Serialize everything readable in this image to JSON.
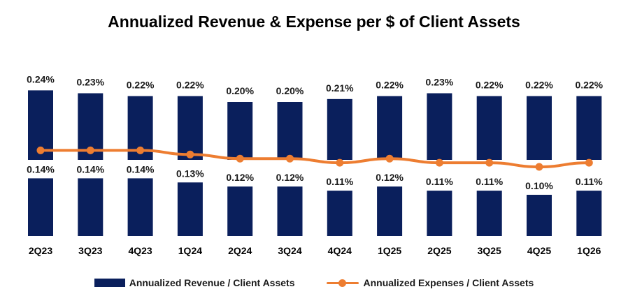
{
  "title": "Annualized Revenue & Expense per $ of Client Assets",
  "colors": {
    "revenue": "#0a1f5c",
    "expense": "#ed7d31"
  },
  "legend": {
    "revenue_label": "Annualized Revenue / Client Assets",
    "expense_label": "Annualized Expenses / Client Assets"
  },
  "chart_data": {
    "type": "bar",
    "title": "Annualized Revenue & Expense per $ of Client Assets",
    "categories": [
      "2Q23",
      "3Q23",
      "4Q23",
      "1Q24",
      "2Q24",
      "3Q24",
      "4Q24",
      "1Q25",
      "2Q25",
      "3Q25",
      "4Q25",
      "1Q26"
    ],
    "series": [
      {
        "name": "Annualized Revenue / Client Assets",
        "type": "bar",
        "values": [
          0.24,
          0.23,
          0.22,
          0.22,
          0.2,
          0.2,
          0.21,
          0.22,
          0.23,
          0.22,
          0.22,
          0.22
        ],
        "labels": [
          "0.24%",
          "0.23%",
          "0.22%",
          "0.22%",
          "0.20%",
          "0.20%",
          "0.21%",
          "0.22%",
          "0.23%",
          "0.22%",
          "0.22%",
          "0.22%"
        ]
      },
      {
        "name": "Annualized Expenses / Client Assets",
        "type": "line",
        "values": [
          0.14,
          0.14,
          0.14,
          0.13,
          0.12,
          0.12,
          0.11,
          0.12,
          0.11,
          0.11,
          0.1,
          0.11
        ],
        "labels": [
          "0.14%",
          "0.14%",
          "0.14%",
          "0.13%",
          "0.12%",
          "0.12%",
          "0.11%",
          "0.12%",
          "0.11%",
          "0.11%",
          "0.10%",
          "0.11%"
        ]
      }
    ],
    "ylim": [
      0,
      0.26
    ],
    "grid": false,
    "legend_position": "bottom"
  }
}
